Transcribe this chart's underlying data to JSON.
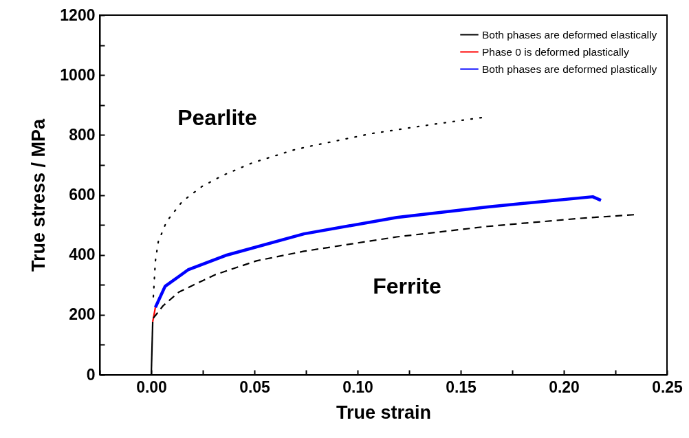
{
  "chart_data": {
    "type": "line",
    "xlabel": "True strain",
    "ylabel": "True stress / MPa",
    "xlim": [
      -0.025,
      0.25
    ],
    "ylim": [
      0,
      1200
    ],
    "xticks": [
      {
        "value": -0.025,
        "label": null
      },
      {
        "value": 0,
        "label": "0.00"
      },
      {
        "value": 0.025,
        "label": null
      },
      {
        "value": 0.05,
        "label": "0.05"
      },
      {
        "value": 0.075,
        "label": null
      },
      {
        "value": 0.1,
        "label": "0.10"
      },
      {
        "value": 0.125,
        "label": null
      },
      {
        "value": 0.15,
        "label": "0.15"
      },
      {
        "value": 0.175,
        "label": null
      },
      {
        "value": 0.2,
        "label": "0.20"
      },
      {
        "value": 0.225,
        "label": null
      },
      {
        "value": 0.25,
        "label": "0.25"
      }
    ],
    "yticks": [
      0,
      {
        "value": 100,
        "label": null
      },
      200,
      {
        "value": 300,
        "label": null
      },
      400,
      {
        "value": 500,
        "label": null
      },
      600,
      {
        "value": 700,
        "label": null
      },
      800,
      {
        "value": 900,
        "label": null
      },
      1000,
      {
        "value": 1100,
        "label": null
      },
      1200
    ],
    "grid": false,
    "legend": "top right",
    "marker": "none",
    "series": [
      {
        "name": "Both phases are deformed elastically",
        "color": "#000000",
        "x": [
          0,
          0.0007
        ],
        "values": [
          0,
          177
        ]
      },
      {
        "name": "Phase 0 is deformed plastically",
        "color": "#ff0000",
        "x": [
          0.0007,
          0.002
        ],
        "values": [
          177,
          225
        ]
      },
      {
        "name": "Both phases are deformed plastically",
        "color": "#0000ff",
        "x": [
          0.002,
          0.0067,
          0.0178,
          0.036,
          0.074,
          0.119,
          0.163,
          0.214,
          0.218
        ],
        "values": [
          225,
          295,
          350,
          398,
          470,
          525,
          560,
          594,
          582
        ]
      },
      {
        "color": "#000000",
        "line_style": "dotted",
        "x": [
          0.001,
          0.002,
          0.0034,
          0.0074,
          0.015,
          0.0245,
          0.0346,
          0.049,
          0.069,
          0.078,
          0.107,
          0.136,
          0.16
        ],
        "values": [
          260,
          380,
          444,
          511,
          578,
          628,
          665,
          707,
          750,
          764,
          805,
          835,
          858
        ]
      },
      {
        "color": "#000000",
        "line_style": "dashed",
        "x": [
          0.001,
          0.0057,
          0.0134,
          0.031,
          0.051,
          0.074,
          0.119,
          0.163,
          0.208,
          0.234
        ],
        "values": [
          189,
          230,
          276,
          334,
          380,
          412,
          460,
          495,
          522,
          534
        ]
      }
    ],
    "annotations": [
      "Pearlite",
      "Ferrite"
    ]
  }
}
